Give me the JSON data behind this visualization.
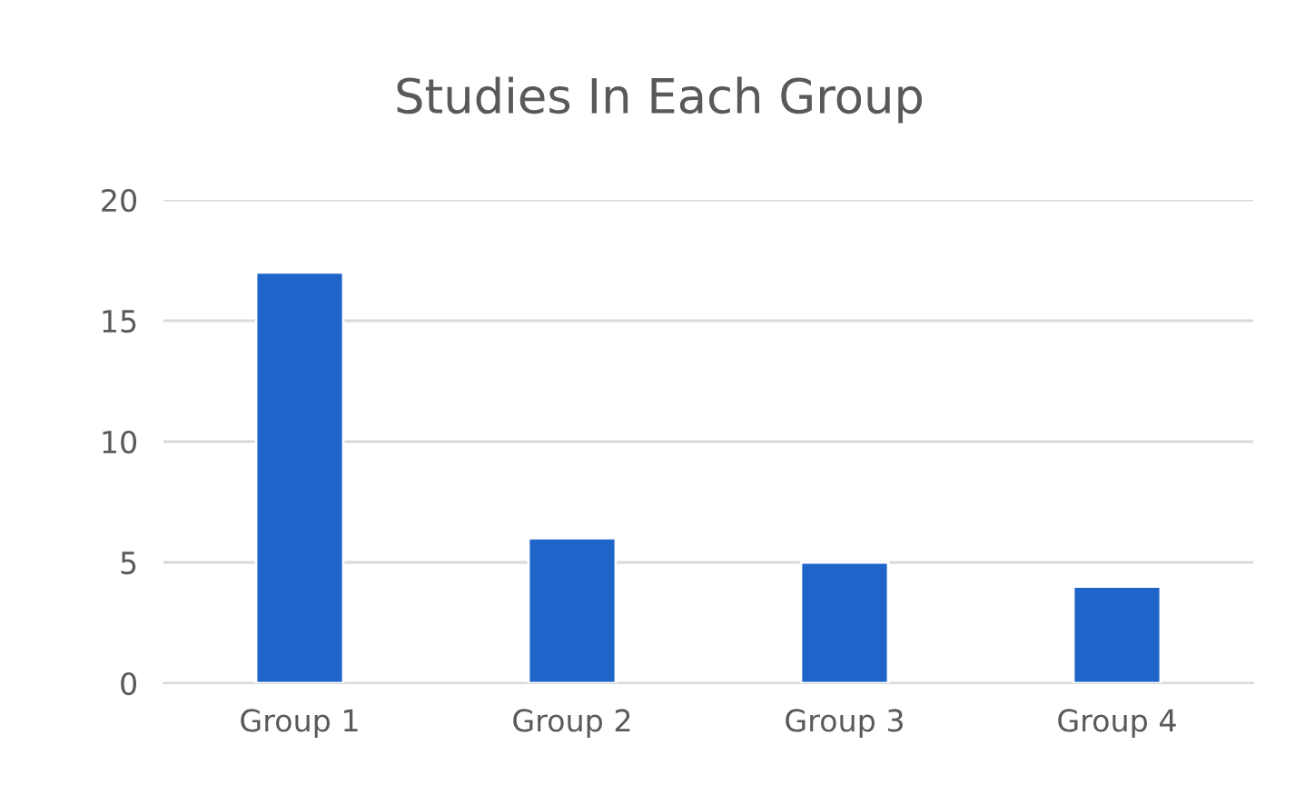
{
  "chart_data": {
    "type": "bar",
    "title": "Studies In Each Group",
    "categories": [
      "Group 1",
      "Group 2",
      "Group 3",
      "Group 4"
    ],
    "values": [
      17,
      6,
      5,
      4
    ],
    "color": "#1f64c8",
    "ylim": [
      0,
      20
    ],
    "yticks": [
      0,
      5,
      10,
      15,
      20
    ],
    "grid": "y",
    "legend": false
  }
}
